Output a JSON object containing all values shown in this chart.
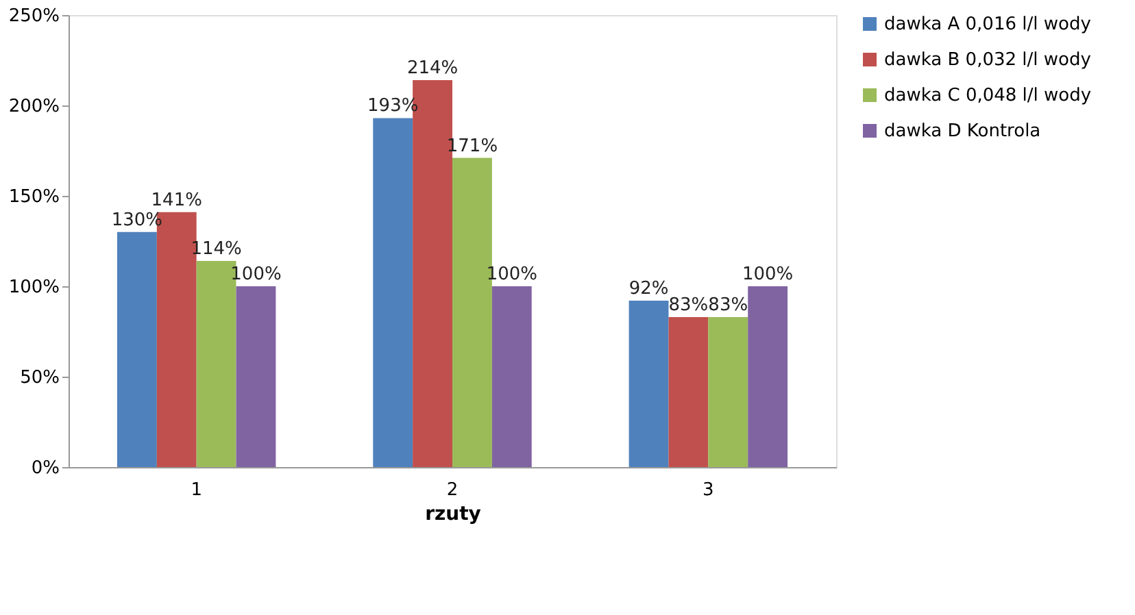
{
  "chart_data": {
    "type": "bar",
    "categories": [
      "1",
      "2",
      "3"
    ],
    "xlabel": "rzuty",
    "ylim": [
      0,
      250
    ],
    "yticks": [
      {
        "value": 0,
        "label": "0%"
      },
      {
        "value": 50,
        "label": "50%"
      },
      {
        "value": 100,
        "label": "100%"
      },
      {
        "value": 150,
        "label": "150%"
      },
      {
        "value": 200,
        "label": "200%"
      },
      {
        "value": 250,
        "label": "250%"
      }
    ],
    "series": [
      {
        "name": "dawka A 0,016 l/l wody",
        "color": "#4f81bd",
        "values": [
          130,
          193,
          92
        ],
        "value_labels": [
          "130%",
          "193%",
          "92%"
        ]
      },
      {
        "name": "dawka B 0,032 l/l wody",
        "color": "#c0504d",
        "values": [
          141,
          214,
          83
        ],
        "value_labels": [
          "141%",
          "214%",
          "83%"
        ]
      },
      {
        "name": "dawka C 0,048 l/l wody",
        "color": "#9bbb59",
        "values": [
          114,
          171,
          83
        ],
        "value_labels": [
          "114%",
          "171%",
          "83%"
        ]
      },
      {
        "name": "dawka D Kontrola",
        "color": "#8064a2",
        "values": [
          100,
          100,
          100
        ],
        "value_labels": [
          "100%",
          "100%",
          "100%"
        ]
      }
    ],
    "grid": false,
    "legend": "top right"
  }
}
